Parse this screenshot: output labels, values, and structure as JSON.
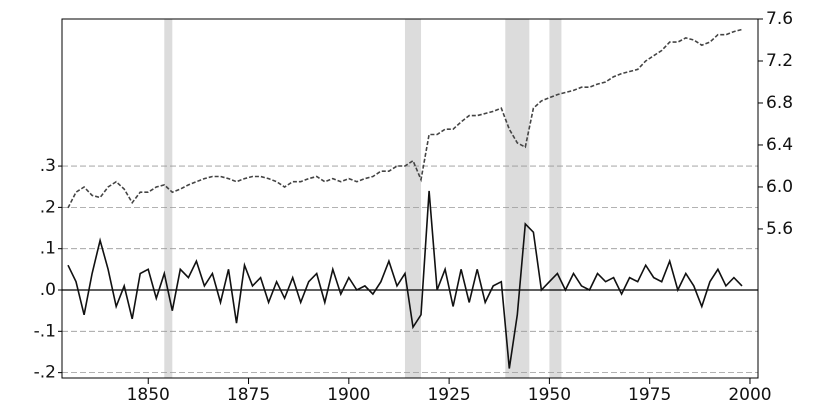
{
  "chart_data": {
    "type": "line",
    "x": [
      1830,
      1832,
      1834,
      1836,
      1838,
      1840,
      1842,
      1844,
      1846,
      1848,
      1850,
      1852,
      1854,
      1856,
      1858,
      1860,
      1862,
      1864,
      1866,
      1868,
      1870,
      1872,
      1874,
      1876,
      1878,
      1880,
      1882,
      1884,
      1886,
      1888,
      1890,
      1892,
      1894,
      1896,
      1898,
      1900,
      1902,
      1904,
      1906,
      1908,
      1910,
      1912,
      1914,
      1916,
      1918,
      1920,
      1922,
      1924,
      1926,
      1928,
      1930,
      1932,
      1934,
      1936,
      1938,
      1940,
      1942,
      1944,
      1946,
      1948,
      1950,
      1952,
      1954,
      1956,
      1958,
      1960,
      1962,
      1964,
      1966,
      1968,
      1970,
      1972,
      1974,
      1976,
      1978,
      1980,
      1982,
      1984,
      1986,
      1988,
      1990,
      1992,
      1994,
      1996,
      1998
    ],
    "series": [
      {
        "color": "#111111",
        "dashed": false,
        "axis": "y",
        "values": [
          0.06,
          0.02,
          -0.06,
          0.04,
          0.12,
          0.05,
          -0.04,
          0.01,
          -0.07,
          0.04,
          0.05,
          -0.02,
          0.04,
          -0.05,
          0.05,
          0.03,
          0.07,
          0.01,
          0.04,
          -0.03,
          0.05,
          -0.08,
          0.06,
          0.01,
          0.03,
          -0.03,
          0.02,
          -0.02,
          0.03,
          -0.03,
          0.02,
          0.04,
          -0.03,
          0.05,
          -0.01,
          0.03,
          0.0,
          0.01,
          -0.01,
          0.02,
          0.07,
          0.01,
          0.04,
          -0.09,
          -0.06,
          0.24,
          0.0,
          0.05,
          -0.04,
          0.05,
          -0.03,
          0.05,
          -0.03,
          0.01,
          0.02,
          -0.19,
          -0.06,
          0.16,
          0.14,
          0.0,
          0.02,
          0.04,
          0.0,
          0.04,
          0.01,
          0.0,
          0.04,
          0.02,
          0.03,
          -0.01,
          0.03,
          0.02,
          0.06,
          0.03,
          0.02,
          0.07,
          0.0,
          0.04,
          0.01,
          -0.04,
          0.02,
          0.05,
          0.01,
          0.03,
          0.01
        ]
      },
      {
        "color": "#444444",
        "dashed": true,
        "axis": "y2",
        "values": [
          5.8,
          5.95,
          6.0,
          5.92,
          5.9,
          6.0,
          6.05,
          5.98,
          5.85,
          5.95,
          5.95,
          6.0,
          6.02,
          5.95,
          5.98,
          6.02,
          6.05,
          6.08,
          6.1,
          6.1,
          6.08,
          6.05,
          6.08,
          6.1,
          6.1,
          6.08,
          6.05,
          6.0,
          6.05,
          6.05,
          6.08,
          6.1,
          6.05,
          6.08,
          6.05,
          6.08,
          6.05,
          6.08,
          6.1,
          6.15,
          6.15,
          6.2,
          6.2,
          6.25,
          6.07,
          6.5,
          6.5,
          6.55,
          6.55,
          6.62,
          6.68,
          6.68,
          6.7,
          6.72,
          6.75,
          6.55,
          6.42,
          6.38,
          6.75,
          6.82,
          6.85,
          6.88,
          6.9,
          6.92,
          6.95,
          6.95,
          6.98,
          7.0,
          7.05,
          7.08,
          7.1,
          7.12,
          7.2,
          7.25,
          7.3,
          7.38,
          7.38,
          7.42,
          7.4,
          7.35,
          7.38,
          7.45,
          7.45,
          7.48,
          7.5
        ]
      }
    ],
    "shaded": [
      [
        1854,
        1856
      ],
      [
        1914,
        1918
      ],
      [
        1939,
        1945
      ],
      [
        1950,
        1953
      ]
    ],
    "xlim": [
      1828.5,
      2002
    ],
    "xticks": [
      1850,
      1875,
      1900,
      1925,
      1950,
      1975,
      2000
    ],
    "ylim": [
      -0.213,
      0.656
    ],
    "yticks": [
      {
        "value": 0.3,
        "label": ".3"
      },
      {
        "value": 0.2,
        "label": ".2"
      },
      {
        "value": 0.1,
        "label": ".1"
      },
      {
        "value": 0,
        "label": ".0"
      },
      {
        "value": -0.1,
        "label": "-.1"
      },
      {
        "value": -0.2,
        "label": "-.2"
      }
    ],
    "y2lim": [
      4.18,
      7.6
    ],
    "y2ticks": [
      7.6,
      7.2,
      6.8,
      6.4,
      {
        "value": 6,
        "label": "6.0"
      },
      5.6
    ],
    "grid": true,
    "zero_line": true
  }
}
